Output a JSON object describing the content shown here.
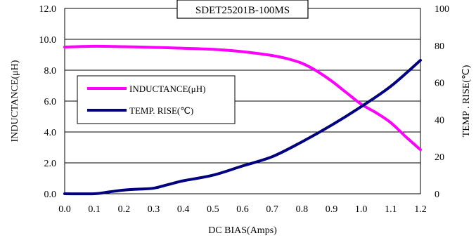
{
  "chart_data": {
    "type": "line",
    "title": "SDET25201B-100MS",
    "xlabel": "DC BIAS(Amps)",
    "ylabel": "INDUCTANCE(μH)",
    "ylabel_right": "TEMP . RISE(℃)",
    "xlim": [
      0.0,
      1.2
    ],
    "ylim": [
      0.0,
      12.0
    ],
    "ylim_right": [
      0,
      100
    ],
    "x_ticks": [
      "0.0",
      "0.1",
      "0.2",
      "0.3",
      "0.4",
      "0.5",
      "0.6",
      "0.7",
      "0.8",
      "0.9",
      "1.0",
      "1.1",
      "1.2"
    ],
    "y_ticks": [
      "0.0",
      "2.0",
      "4.0",
      "6.0",
      "8.0",
      "10.0",
      "12.0"
    ],
    "y_ticks_right": [
      "0",
      "20",
      "40",
      "60",
      "80",
      "100"
    ],
    "grid": "horizontal",
    "legend_position": "middle-left",
    "series": [
      {
        "name": "INDUCTANCE(μH)",
        "axis": "left",
        "color": "#ff00ff",
        "x": [
          0.0,
          0.1,
          0.2,
          0.3,
          0.4,
          0.5,
          0.6,
          0.7,
          0.75,
          0.8,
          0.85,
          0.9,
          0.95,
          1.0,
          1.05,
          1.1,
          1.15,
          1.2
        ],
        "values": [
          9.5,
          9.55,
          9.52,
          9.48,
          9.42,
          9.35,
          9.2,
          8.95,
          8.75,
          8.45,
          7.95,
          7.3,
          6.55,
          5.8,
          5.25,
          4.6,
          3.7,
          2.85
        ]
      },
      {
        "name": "TEMP. RISE(℃)",
        "axis": "right",
        "color": "#000080",
        "x": [
          0.0,
          0.1,
          0.15,
          0.2,
          0.25,
          0.3,
          0.35,
          0.4,
          0.5,
          0.6,
          0.7,
          0.8,
          0.9,
          1.0,
          1.1,
          1.2
        ],
        "values": [
          0,
          0,
          1,
          2,
          2.5,
          3,
          5,
          7,
          10,
          15,
          20,
          28,
          37,
          47,
          58,
          72
        ]
      }
    ]
  }
}
